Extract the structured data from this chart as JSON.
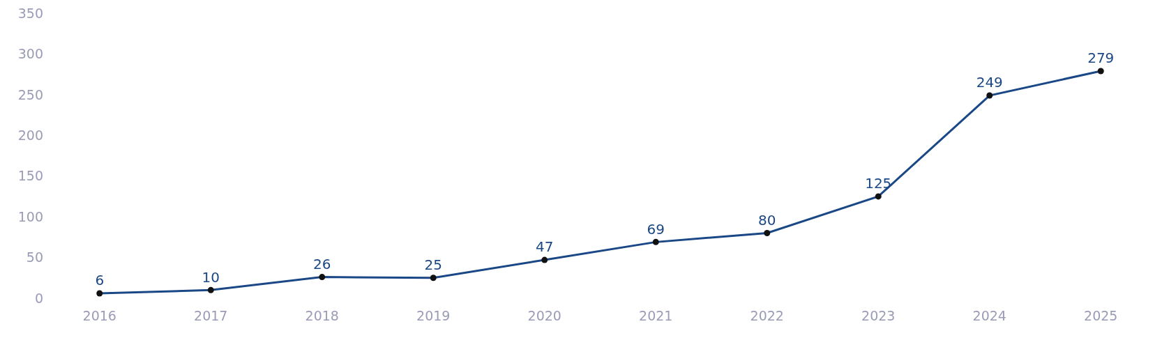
{
  "chart_data": {
    "type": "line",
    "categories": [
      "2016",
      "2017",
      "2018",
      "2019",
      "2020",
      "2021",
      "2022",
      "2023",
      "2024",
      "2025"
    ],
    "series": [
      {
        "color": "#1a4785",
        "values": [
          6,
          10,
          26,
          25,
          47,
          69,
          80,
          125,
          249,
          279
        ]
      }
    ],
    "ylim": [
      0,
      350
    ],
    "yticks": [
      0,
      50,
      100,
      150,
      200,
      250,
      300,
      350
    ],
    "data_labels": true,
    "marker": "circle",
    "line_style": "solid"
  }
}
